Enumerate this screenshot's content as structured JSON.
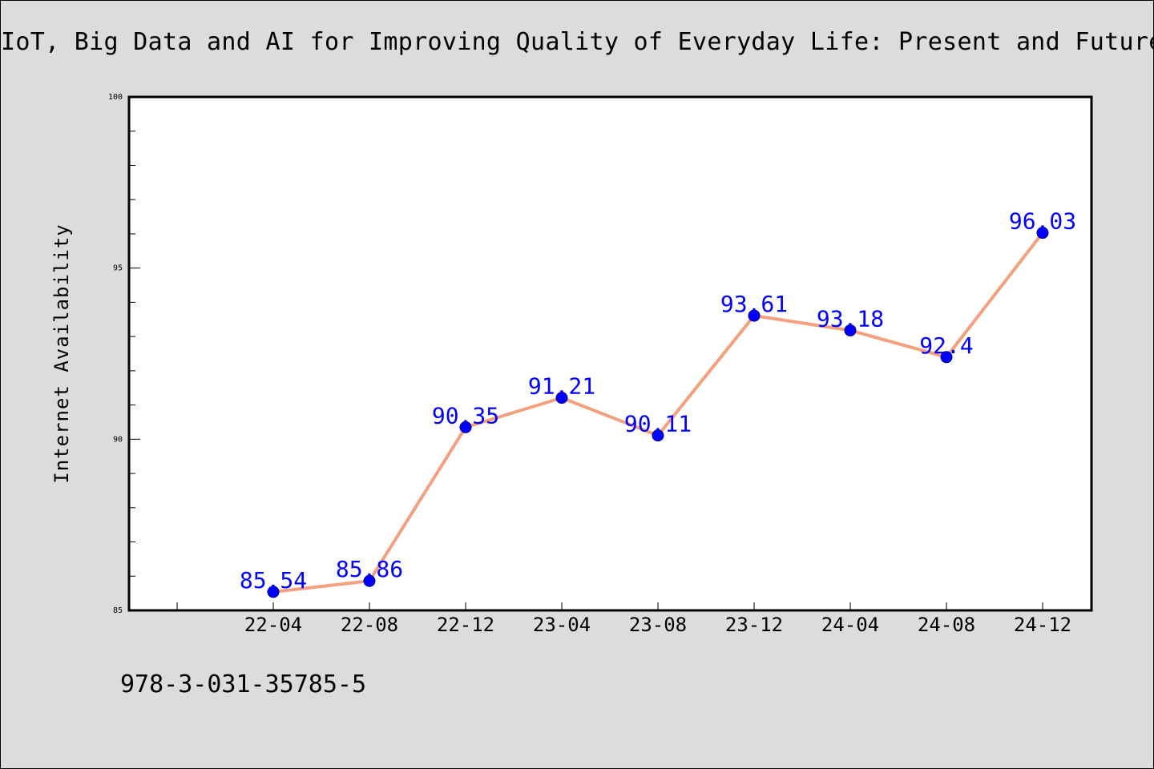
{
  "page": {
    "title": "IoT, Big Data and AI for Improving Quality of Everyday Life: Present and Future",
    "footer_note": "978-3-031-35785-5"
  },
  "chart_data": {
    "type": "line",
    "title": "IoT, Big Data and AI for Improving Quality of Everyday Life: Present and Future",
    "xlabel": "",
    "ylabel": "Internet Availability",
    "categories": [
      "22-04",
      "22-08",
      "22-12",
      "23-04",
      "23-08",
      "23-12",
      "24-04",
      "24-08",
      "24-12"
    ],
    "series": [
      {
        "values": [
          85.54,
          85.86,
          90.35,
          91.21,
          90.11,
          93.61,
          93.18,
          92.4,
          96.03
        ],
        "data_labels": [
          "85.54",
          "85.86",
          "90.35",
          "91.21",
          "90.11",
          "93.61",
          "93.18",
          "92.4",
          "96.03"
        ]
      }
    ],
    "ylim": [
      85,
      100
    ],
    "y_ticks": [
      85,
      90,
      95,
      100
    ],
    "y_tick_labels": [
      "85",
      "90",
      "95",
      "100"
    ],
    "grid": false,
    "line_color": "#f4a07e",
    "marker_color": "#0000ff",
    "data_label_color": "#0000ff"
  }
}
